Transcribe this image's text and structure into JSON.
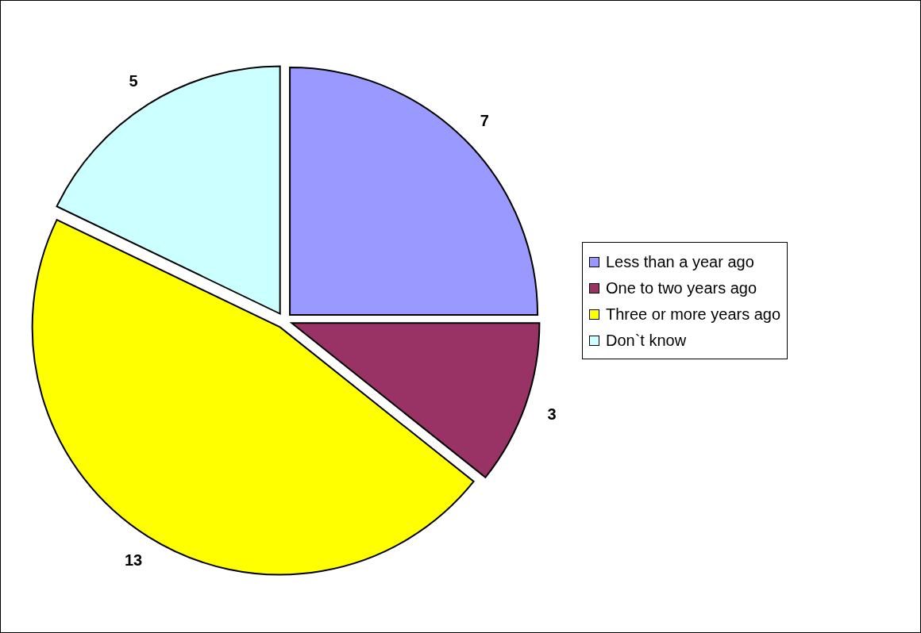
{
  "chart_data": {
    "type": "pie",
    "categories": [
      "Less than a year ago",
      "One to two years ago",
      "Three or more years ago",
      "Don`t know"
    ],
    "values": [
      7,
      3,
      13,
      5
    ],
    "colors": [
      "#9999ff",
      "#993366",
      "#ffff00",
      "#ccffff"
    ],
    "data_labels": true,
    "legend": "right"
  }
}
